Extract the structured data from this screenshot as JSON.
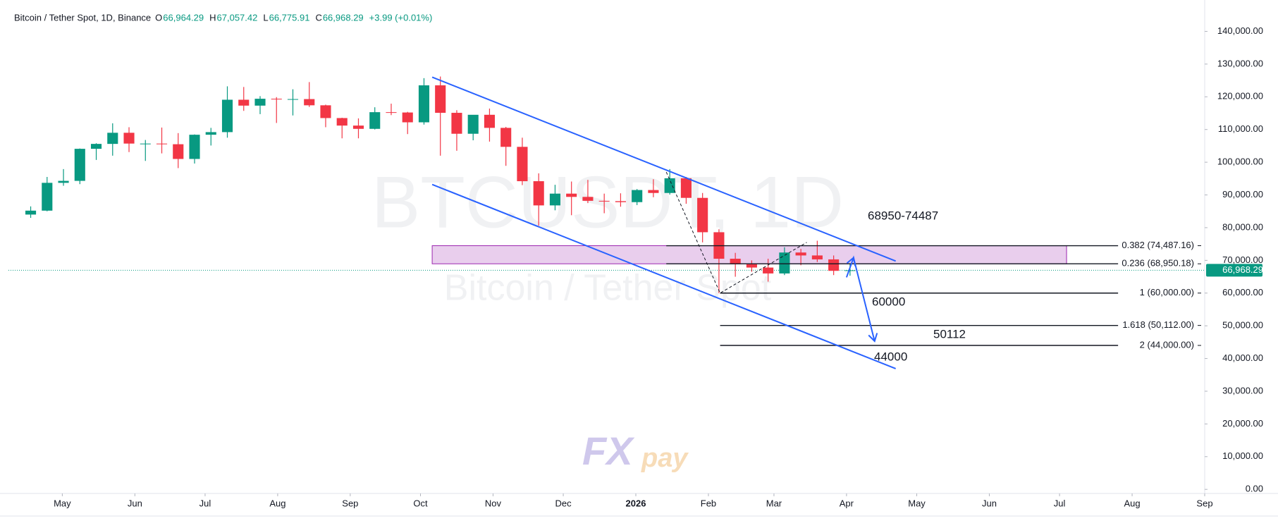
{
  "chart_data": {
    "type": "candlestick",
    "header": {
      "title": "Bitcoin / Tether Spot, 1D, Binance",
      "open_label": "O",
      "open": "66,964.29",
      "high_label": "H",
      "high": "67,057.42",
      "low_label": "L",
      "low": "66,775.91",
      "close_label": "C",
      "close": "66,968.29",
      "change": "+3.99 (+0.01%)"
    },
    "watermark": "BTCUSDT, 1D",
    "watermark_subtitle": "Bitcoin / Tether Spot",
    "logo": {
      "fx": "FX",
      "pay": "pay"
    },
    "up_color": "#089981",
    "down_color": "#f23645",
    "x": [
      "2025-04-14",
      "2025-04-21",
      "2025-04-28",
      "2025-05-05",
      "2025-05-12",
      "2025-05-19",
      "2025-05-26",
      "2025-06-02",
      "2025-06-09",
      "2025-06-16",
      "2025-06-23",
      "2025-06-30",
      "2025-07-07",
      "2025-07-14",
      "2025-07-21",
      "2025-07-28",
      "2025-08-04",
      "2025-08-11",
      "2025-08-18",
      "2025-08-25",
      "2025-09-01",
      "2025-09-08",
      "2025-09-15",
      "2025-09-22",
      "2025-09-29",
      "2025-10-06",
      "2025-10-13",
      "2025-10-20",
      "2025-10-27",
      "2025-11-03",
      "2025-11-10",
      "2025-11-17",
      "2025-11-24",
      "2025-12-01",
      "2025-12-08",
      "2025-12-15",
      "2025-12-22",
      "2025-12-29",
      "2026-01-05",
      "2026-01-12",
      "2026-01-19",
      "2026-01-26",
      "2026-02-02",
      "2026-02-09",
      "2026-02-16",
      "2026-02-23",
      "2026-03-02",
      "2026-03-09",
      "2026-03-16",
      "2026-03-23",
      "2026-03-30"
    ],
    "open": [
      84000,
      85200,
      93700,
      94300,
      104100,
      105600,
      109000,
      105700,
      105700,
      105500,
      101000,
      108400,
      109200,
      119100,
      117300,
      119400,
      119300,
      119300,
      117400,
      113500,
      111200,
      110200,
      115300,
      115200,
      112200,
      123500,
      115100,
      108700,
      114500,
      110500,
      104700,
      94200,
      86800,
      90400,
      89400,
      88200,
      88100,
      87800,
      91500,
      90600,
      95100,
      89100,
      78600,
      70500,
      68800,
      67800,
      66000,
      72400,
      71500,
      70300,
      66800
    ],
    "high": [
      86500,
      95500,
      97900,
      104200,
      105800,
      111900,
      110700,
      106800,
      110600,
      108900,
      108500,
      110500,
      123200,
      123000,
      120200,
      119900,
      122300,
      124500,
      117600,
      113600,
      113400,
      116800,
      117900,
      115400,
      125700,
      126200,
      115900,
      114000,
      116400,
      110800,
      107500,
      96600,
      93100,
      94100,
      94600,
      90400,
      90500,
      91800,
      94800,
      97900,
      95500,
      90600,
      79500,
      72300,
      70000,
      70500,
      74000,
      73500,
      76000,
      71500,
      69000
    ],
    "low": [
      83000,
      85000,
      92800,
      93300,
      100700,
      102000,
      103100,
      100400,
      102700,
      98200,
      99600,
      105100,
      107500,
      115700,
      114700,
      112000,
      114300,
      116900,
      110700,
      107300,
      107300,
      110000,
      114400,
      108600,
      111500,
      102000,
      103500,
      106700,
      106300,
      98900,
      93000,
      80600,
      85300,
      83800,
      87500,
      84400,
      86400,
      86900,
      89300,
      90100,
      87300,
      75500,
      60000,
      65000,
      66500,
      63500,
      65500,
      68500,
      69500,
      65500,
      65300
    ],
    "close": [
      85200,
      93700,
      94300,
      104100,
      105600,
      109000,
      105700,
      105700,
      105500,
      101000,
      108400,
      109200,
      119100,
      117300,
      119400,
      119300,
      119300,
      117400,
      113500,
      111200,
      110200,
      115300,
      115200,
      112200,
      123500,
      115100,
      108700,
      114500,
      110500,
      104700,
      94200,
      86800,
      90400,
      89400,
      88200,
      88100,
      87800,
      91500,
      90600,
      95100,
      89100,
      78600,
      70500,
      68800,
      67800,
      66000,
      72400,
      71500,
      70300,
      66800,
      66968.29
    ],
    "xlim": [
      "2025-04-08",
      "2026-09-01"
    ],
    "xticks": [
      {
        "value": "2025-05-01",
        "label": "May"
      },
      {
        "value": "2025-06-01",
        "label": "Jun"
      },
      {
        "value": "2025-07-01",
        "label": "Jul"
      },
      {
        "value": "2025-08-01",
        "label": "Aug"
      },
      {
        "value": "2025-09-01",
        "label": "Sep"
      },
      {
        "value": "2025-10-01",
        "label": "Oct"
      },
      {
        "value": "2025-11-01",
        "label": "Nov"
      },
      {
        "value": "2025-12-01",
        "label": "Dec"
      },
      {
        "value": "2026-01-01",
        "label": "2026"
      },
      {
        "value": "2026-02-01",
        "label": "Feb"
      },
      {
        "value": "2026-03-01",
        "label": "Mar"
      },
      {
        "value": "2026-04-01",
        "label": "Apr"
      },
      {
        "value": "2026-05-01",
        "label": "May"
      },
      {
        "value": "2026-06-01",
        "label": "Jun"
      },
      {
        "value": "2026-07-01",
        "label": "Jul"
      },
      {
        "value": "2026-08-01",
        "label": "Aug"
      },
      {
        "value": "2026-09-01",
        "label": "Sep"
      }
    ],
    "ylim": [
      -1250,
      147000
    ],
    "yticks": [
      {
        "value": 0,
        "label": "0.00"
      },
      {
        "value": 10000,
        "label": "10,000.00"
      },
      {
        "value": 20000,
        "label": "20,000.00"
      },
      {
        "value": 30000,
        "label": "30,000.00"
      },
      {
        "value": 40000,
        "label": "40,000.00"
      },
      {
        "value": 50000,
        "label": "50,000.00"
      },
      {
        "value": 60000,
        "label": "60,000.00"
      },
      {
        "value": 70000,
        "label": "70,000.00"
      },
      {
        "value": 80000,
        "label": "80,000.00"
      },
      {
        "value": 90000,
        "label": "90,000.00"
      },
      {
        "value": 100000,
        "label": "100,000.00"
      },
      {
        "value": 110000,
        "label": "110,000.00"
      },
      {
        "value": 120000,
        "label": "120,000.00"
      },
      {
        "value": 130000,
        "label": "130,000.00"
      },
      {
        "value": 140000,
        "label": "140,000.00"
      }
    ],
    "last_price": {
      "value": 66968.29,
      "label": "66,968.29"
    },
    "zone": {
      "x": [
        "2025-10-06",
        "2026-07-04"
      ],
      "y": [
        68950.18,
        74487.16
      ],
      "color": "#e1bee7"
    },
    "fib_end": "2026-07-26",
    "fib_levels": [
      {
        "value": 74487.16,
        "label": "0.382 (74,487.16)",
        "start": "2026-01-14"
      },
      {
        "value": 68950.18,
        "label": "0.236 (68,950.18)",
        "start": "2026-01-14"
      },
      {
        "value": 60000,
        "label": "1 (60,000.00)",
        "start": "2026-02-06"
      },
      {
        "value": 50112,
        "label": "1.618 (50,112.00)",
        "start": "2026-02-06"
      },
      {
        "value": 44000,
        "label": "2 (44,000.00)",
        "start": "2026-02-06"
      }
    ],
    "channel": [
      {
        "x": [
          "2025-10-06",
          "2026-04-22"
        ],
        "y": [
          126000,
          69800
        ]
      },
      {
        "x": [
          "2025-10-06",
          "2026-04-22"
        ],
        "y": [
          93200,
          36900
        ]
      }
    ],
    "channel_color": "#2962ff",
    "swing": {
      "x": [
        "2026-01-14",
        "2026-02-06",
        "2026-03-15"
      ],
      "y": [
        97000,
        60000,
        75500
      ]
    },
    "projection": {
      "x": [
        "2026-04-01",
        "2026-04-04",
        "2026-04-13"
      ],
      "y": [
        64800,
        70800,
        45300
      ]
    },
    "annotations": [
      "68950-74487",
      "60000",
      "50112",
      "44000"
    ]
  }
}
